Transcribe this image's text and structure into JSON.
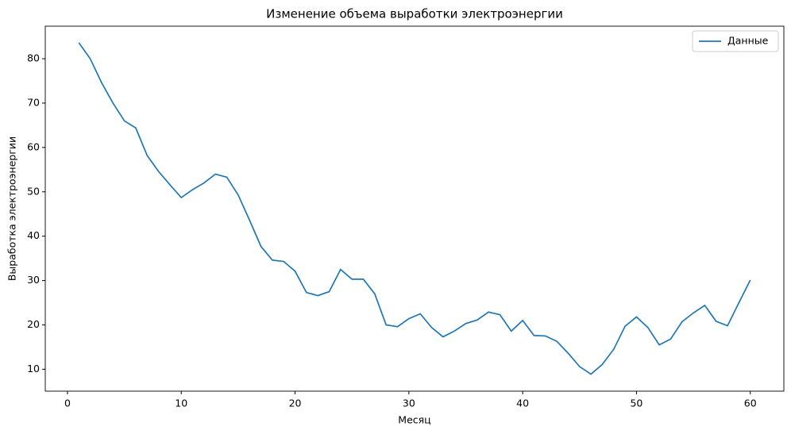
{
  "chart_data": {
    "type": "line",
    "title": "Изменение объема выработки электроэнергии",
    "x_label": "Месяц",
    "y_label": "Выработка электроэнергии",
    "x": [
      1,
      2,
      3,
      4,
      5,
      6,
      7,
      8,
      9,
      10,
      11,
      12,
      13,
      14,
      15,
      16,
      17,
      18,
      19,
      20,
      21,
      22,
      23,
      24,
      25,
      26,
      27,
      28,
      29,
      30,
      31,
      32,
      33,
      34,
      35,
      36,
      37,
      38,
      39,
      40,
      41,
      42,
      43,
      44,
      45,
      46,
      47,
      48,
      49,
      50,
      51,
      52,
      53,
      54,
      55,
      56,
      57,
      58,
      59,
      60
    ],
    "series": [
      {
        "name": "Данные",
        "color": "#1f77b4",
        "values": [
          83.6,
          80.0,
          74.6,
          70.0,
          66.0,
          64.4,
          58.2,
          54.6,
          51.6,
          48.7,
          50.5,
          52.0,
          54.0,
          53.3,
          49.3,
          43.6,
          37.7,
          34.6,
          34.3,
          32.1,
          27.3,
          26.6,
          27.5,
          32.5,
          30.3,
          30.3,
          27.0,
          20.0,
          19.6,
          21.4,
          22.5,
          19.4,
          17.3,
          18.6,
          20.3,
          21.1,
          22.9,
          22.3,
          18.6,
          21.0,
          17.6,
          17.5,
          16.3,
          13.6,
          10.6,
          8.9,
          11.1,
          14.5,
          19.7,
          21.8,
          19.4,
          15.5,
          16.8,
          20.7,
          22.7,
          24.4,
          20.8,
          19.8,
          25.0,
          30.1
        ]
      }
    ],
    "xlim": [
      -1.95,
      62.95
    ],
    "ylim": [
      5.06,
      87.34
    ],
    "xticks": [
      0,
      10,
      20,
      30,
      40,
      50,
      60
    ],
    "yticks": [
      10,
      20,
      30,
      40,
      50,
      60,
      70,
      80
    ],
    "grid": false,
    "legend": "upper right"
  }
}
